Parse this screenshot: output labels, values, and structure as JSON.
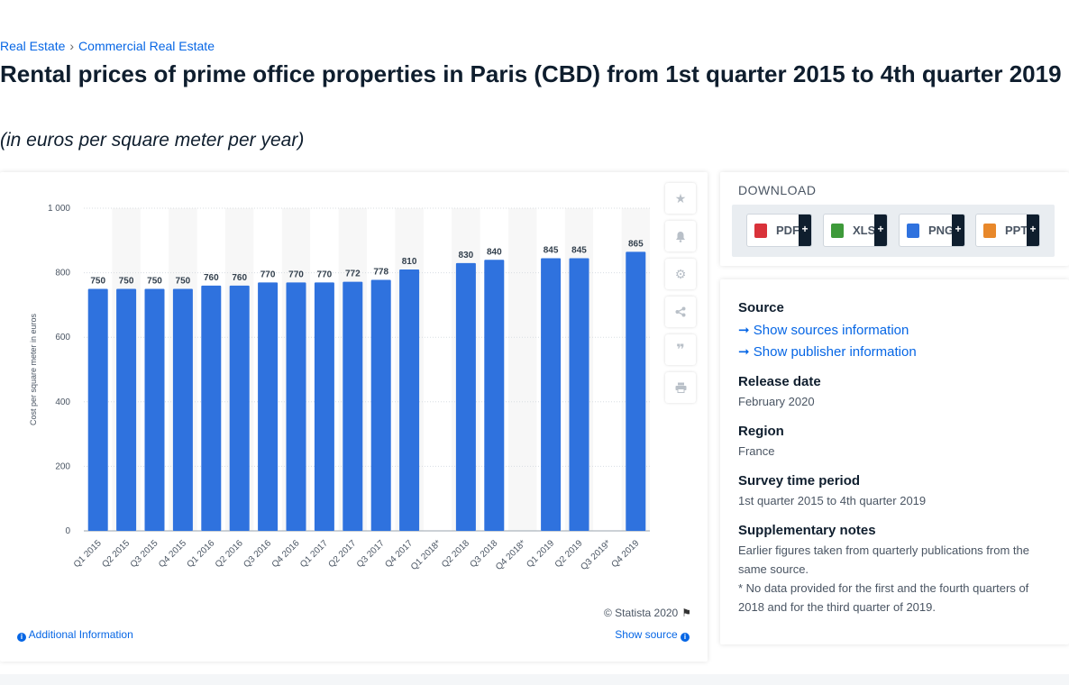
{
  "breadcrumb": {
    "items": [
      "Real Estate",
      "Commercial Real Estate"
    ],
    "separator": "›"
  },
  "page": {
    "title": "Rental prices of prime office properties in Paris (CBD) from 1st quarter 2015 to 4th quarter 2019",
    "subtitle": "(in euros per square meter per year)"
  },
  "chart_data": {
    "type": "bar",
    "categories": [
      "Q1 2015",
      "Q2 2015",
      "Q3 2015",
      "Q4 2015",
      "Q1 2016",
      "Q2 2016",
      "Q3 2016",
      "Q4 2016",
      "Q1 2017",
      "Q2 2017",
      "Q3 2017",
      "Q4 2017",
      "Q1 2018*",
      "Q2 2018",
      "Q3 2018",
      "Q4 2018*",
      "Q1 2019",
      "Q2 2019",
      "Q3 2019*",
      "Q4 2019"
    ],
    "values": [
      750,
      750,
      750,
      750,
      760,
      760,
      770,
      770,
      770,
      772,
      778,
      810,
      null,
      830,
      840,
      null,
      845,
      845,
      null,
      865
    ],
    "data_labels": [
      "750",
      "750",
      "750",
      "750",
      "760",
      "760",
      "770",
      "770",
      "770",
      "772",
      "778",
      "810",
      "",
      "830",
      "840",
      "",
      "845",
      "845",
      "",
      "865"
    ],
    "ylabel": "Cost per square meter in euros",
    "xlabel": "",
    "ylim": [
      0,
      1000
    ],
    "yticks": [
      0,
      200,
      400,
      600,
      800,
      1000
    ],
    "ytick_labels": [
      "0",
      "200",
      "400",
      "600",
      "800",
      "1 000"
    ],
    "grid": true,
    "bar_color": "#2f72de",
    "band_color": "#f7f7f7"
  },
  "toolbar": {
    "icons": [
      "star-icon",
      "bell-icon",
      "gear-icon",
      "share-icon",
      "quote-icon",
      "print-icon"
    ]
  },
  "chart_footer": {
    "credit": "© Statista 2020",
    "additional_info": "Additional Information",
    "show_source": "Show source"
  },
  "download": {
    "title": "DOWNLOAD",
    "buttons": [
      {
        "label": "PDF",
        "color": "#d9323a"
      },
      {
        "label": "XLS",
        "color": "#3e9a3a"
      },
      {
        "label": "PNG",
        "color": "#2f72de"
      },
      {
        "label": "PPT",
        "color": "#e8882a"
      }
    ],
    "plus": "+"
  },
  "meta": {
    "source_heading": "Source",
    "show_sources": "Show sources information",
    "show_publisher": "Show publisher information",
    "release_heading": "Release date",
    "release_value": "February 2020",
    "region_heading": "Region",
    "region_value": "France",
    "period_heading": "Survey time period",
    "period_value": "1st quarter 2015 to 4th quarter 2019",
    "notes_heading": "Supplementary notes",
    "notes_line1": "Earlier figures taken from quarterly publications from the same source.",
    "notes_line2": "* No data provided for the first and the fourth quarters of 2018 and for the third quarter of 2019."
  }
}
